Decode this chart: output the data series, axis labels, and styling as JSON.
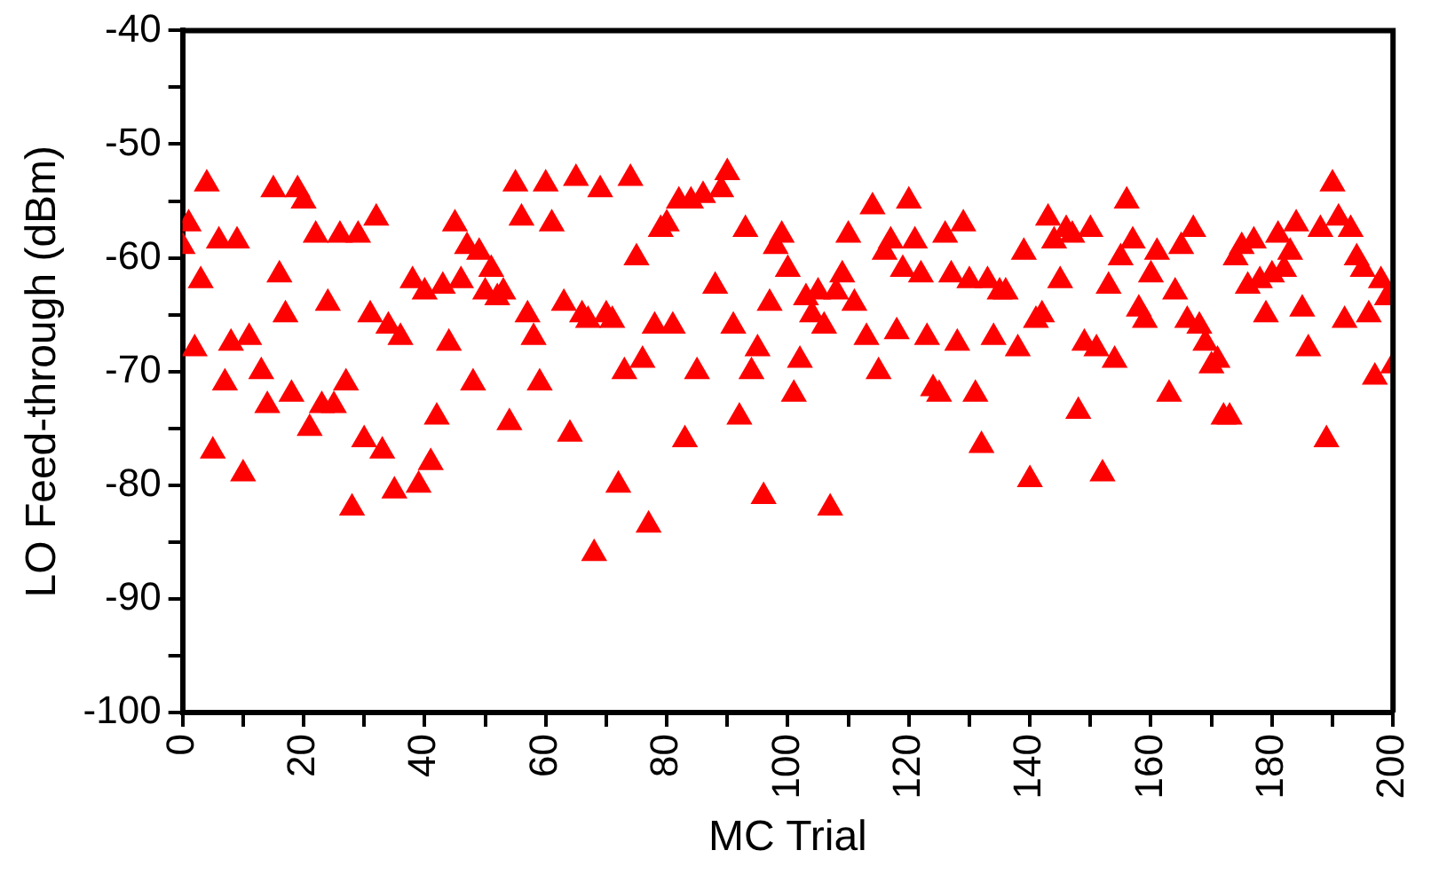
{
  "chart_data": {
    "type": "scatter",
    "xlabel": "MC Trial",
    "ylabel": "LO Feed-through (dBm)",
    "marker": "triangle",
    "grid": false,
    "legend": false,
    "xlim": [
      0,
      200
    ],
    "ylim": [
      -100,
      -40
    ],
    "xticks": [
      0,
      {
        "value": 10,
        "label": null
      },
      20,
      {
        "value": 30,
        "label": null
      },
      40,
      {
        "value": 50,
        "label": null
      },
      60,
      {
        "value": 70,
        "label": null
      },
      80,
      {
        "value": 90,
        "label": null
      },
      100,
      {
        "value": 110,
        "label": null
      },
      120,
      {
        "value": 130,
        "label": null
      },
      140,
      {
        "value": 150,
        "label": null
      },
      160,
      {
        "value": 170,
        "label": null
      },
      180,
      {
        "value": 190,
        "label": null
      },
      200
    ],
    "yticks": [
      -100,
      {
        "value": -95,
        "label": null
      },
      -90,
      {
        "value": -85,
        "label": null
      },
      -80,
      {
        "value": -75,
        "label": null
      },
      -70,
      {
        "value": -65,
        "label": null
      },
      -60,
      {
        "value": -55,
        "label": null
      },
      -50,
      {
        "value": -45,
        "label": null
      },
      -40
    ],
    "series": [
      {
        "color": "#ff0000",
        "x": [
          0,
          1,
          2,
          3,
          4,
          5,
          6,
          7,
          8,
          9,
          10,
          11,
          13,
          14,
          15,
          16,
          17,
          18,
          19,
          20,
          21,
          22,
          23,
          24,
          25,
          26,
          27,
          28,
          29,
          30,
          31,
          32,
          33,
          34,
          35,
          36,
          38,
          39,
          40,
          41,
          42,
          43,
          44,
          45,
          46,
          47,
          48,
          49,
          50,
          51,
          52,
          53,
          54,
          55,
          56,
          57,
          58,
          59,
          60,
          61,
          63,
          64,
          65,
          66,
          67,
          68,
          69,
          70,
          71,
          72,
          73,
          74,
          75,
          76,
          77,
          78,
          79,
          80,
          81,
          82,
          83,
          84,
          85,
          86,
          88,
          89,
          90,
          91,
          92,
          93,
          94,
          95,
          96,
          97,
          98,
          99,
          100,
          101,
          102,
          103,
          104,
          105,
          106,
          107,
          108,
          109,
          110,
          111,
          113,
          114,
          115,
          116,
          117,
          118,
          119,
          120,
          121,
          122,
          123,
          124,
          125,
          126,
          127,
          128,
          129,
          130,
          131,
          132,
          133,
          134,
          135,
          136,
          138,
          139,
          140,
          141,
          142,
          143,
          144,
          145,
          146,
          147,
          148,
          149,
          150,
          151,
          152,
          153,
          154,
          155,
          156,
          157,
          158,
          159,
          160,
          161,
          163,
          164,
          165,
          166,
          167,
          168,
          169,
          170,
          171,
          172,
          173,
          174,
          175,
          176,
          177,
          178,
          179,
          180,
          181,
          182,
          183,
          184,
          185,
          186,
          188,
          189,
          190,
          191,
          192,
          193,
          194,
          195,
          196,
          197,
          198,
          199,
          200
        ],
        "values": [
          -59,
          -57,
          -68,
          -62,
          -53.5,
          -77,
          -58.5,
          -71,
          -67.5,
          -58.5,
          -79,
          -67,
          -70,
          -73,
          -54,
          -61.5,
          -65,
          -72,
          -54,
          -55,
          -75,
          -58,
          -73,
          -64,
          -73,
          -58,
          -71,
          -82,
          -58,
          -76,
          -65,
          -56.5,
          -77,
          -66,
          -80.5,
          -67,
          -62,
          -80,
          -63,
          -78,
          -74,
          -62.5,
          -67.5,
          -57,
          -62,
          -59,
          -71,
          -59.5,
          -63,
          -61,
          -63.5,
          -63,
          -74.5,
          -53.5,
          -56.5,
          -65,
          -67,
          -71,
          -53.5,
          -57,
          -64,
          -75.5,
          -53,
          -65,
          -65.5,
          -86,
          -54,
          -65,
          -65.5,
          -80,
          -70,
          -53,
          -60,
          -69,
          -83.5,
          -66,
          -57.5,
          -57,
          -66,
          -55,
          -76,
          -55,
          -70,
          -54.5,
          -62.5,
          -54,
          -52.5,
          -66,
          -74,
          -57.5,
          -70,
          -68,
          -81,
          -64,
          -59,
          -58,
          -61,
          -72,
          -69,
          -63.5,
          -65,
          -63,
          -66,
          -82,
          -63,
          -61.5,
          -58,
          -64,
          -67,
          -55.5,
          -70,
          -59.5,
          -58.5,
          -66.5,
          -61,
          -55,
          -58.5,
          -61.5,
          -67,
          -71.5,
          -72,
          -58,
          -61.5,
          -67.5,
          -57,
          -62,
          -72,
          -76.5,
          -62,
          -67,
          -63,
          -63,
          -68,
          -59.5,
          -79.5,
          -65.5,
          -65,
          -56.5,
          -58.5,
          -62,
          -57.5,
          -58,
          -73.5,
          -67.5,
          -57.5,
          -68,
          -79,
          -62.5,
          -69,
          -60,
          -55,
          -58.5,
          -64.5,
          -65.5,
          -61.5,
          -59.5,
          -72,
          -63,
          -59,
          -65.5,
          -57.5,
          -66,
          -67.5,
          -69.5,
          -69,
          -74,
          -74,
          -60,
          -59,
          -62.5,
          -58.5,
          -62,
          -65,
          -61.5,
          -58,
          -61,
          -59.5,
          -57,
          -64.5,
          -68,
          -57.5,
          -76,
          -53.5,
          -56.5,
          -65.5,
          -57.5,
          -60,
          -61,
          -65,
          -70.5,
          -62,
          -63.5,
          -69.5
        ]
      }
    ]
  }
}
